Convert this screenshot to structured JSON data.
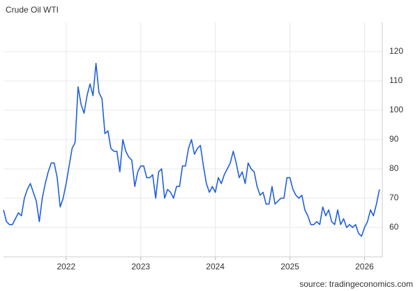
{
  "chart_data": {
    "type": "line",
    "title": "Crude Oil WTI",
    "source": "source: tradingeconomics.com",
    "color": "#1f5fe0",
    "grid": true,
    "y_axis_side": "right",
    "xlim": [
      2021.16,
      2026.22
    ],
    "xticks": [
      2022,
      2023,
      2024,
      2025,
      2026
    ],
    "ylim": [
      50,
      130
    ],
    "yticks": [
      60,
      70,
      80,
      90,
      100,
      110,
      120
    ],
    "x": [
      2021.16,
      2021.2,
      2021.24,
      2021.28,
      2021.32,
      2021.36,
      2021.4,
      2021.44,
      2021.48,
      2021.52,
      2021.56,
      2021.6,
      2021.64,
      2021.68,
      2021.72,
      2021.76,
      2021.8,
      2021.84,
      2021.88,
      2021.92,
      2021.96,
      2022,
      2022.04,
      2022.08,
      2022.12,
      2022.16,
      2022.2,
      2022.24,
      2022.28,
      2022.32,
      2022.36,
      2022.4,
      2022.44,
      2022.48,
      2022.52,
      2022.56,
      2022.6,
      2022.64,
      2022.68,
      2022.72,
      2022.76,
      2022.8,
      2022.84,
      2022.88,
      2022.92,
      2022.96,
      2023,
      2023.04,
      2023.08,
      2023.12,
      2023.16,
      2023.2,
      2023.24,
      2023.28,
      2023.32,
      2023.36,
      2023.4,
      2023.44,
      2023.48,
      2023.52,
      2023.56,
      2023.6,
      2023.64,
      2023.68,
      2023.72,
      2023.76,
      2023.8,
      2023.84,
      2023.88,
      2023.92,
      2023.96,
      2024,
      2024.04,
      2024.08,
      2024.12,
      2024.16,
      2024.2,
      2024.24,
      2024.28,
      2024.32,
      2024.36,
      2024.4,
      2024.44,
      2024.48,
      2024.52,
      2024.56,
      2024.6,
      2024.64,
      2024.68,
      2024.72,
      2024.76,
      2024.8,
      2024.84,
      2024.88,
      2024.92,
      2024.96,
      2025,
      2025.04,
      2025.08,
      2025.12,
      2025.16,
      2025.2,
      2025.24,
      2025.28,
      2025.32,
      2025.36,
      2025.4,
      2025.44,
      2025.48,
      2025.52,
      2025.56,
      2025.6,
      2025.64,
      2025.68,
      2025.72,
      2025.76,
      2025.8,
      2025.84,
      2025.88,
      2025.92,
      2025.96,
      2026,
      2026.04,
      2026.08,
      2026.12,
      2026.16,
      2026.2
    ],
    "values": [
      66,
      62,
      61,
      61,
      63,
      65,
      64,
      70,
      73,
      75,
      72,
      69,
      62,
      70,
      75,
      79,
      82,
      82,
      77,
      67,
      70,
      75,
      81,
      87,
      89,
      108,
      102,
      99,
      105,
      109,
      105,
      116,
      106,
      104,
      92,
      93,
      87,
      86,
      86,
      79,
      90,
      86,
      84,
      83,
      74,
      79,
      81,
      81,
      77,
      77,
      78,
      70,
      79,
      80,
      70,
      73,
      72,
      70,
      74,
      74,
      81,
      81,
      87,
      90,
      85,
      87,
      88,
      81,
      75,
      72,
      74,
      72,
      77,
      75,
      78,
      80,
      82,
      86,
      82,
      77,
      79,
      75,
      82,
      80,
      79,
      74,
      71,
      72,
      68,
      68,
      74,
      68,
      69,
      70,
      70,
      77,
      77,
      73,
      71,
      70,
      71,
      66,
      64,
      61,
      61,
      62,
      61,
      67,
      64,
      66,
      62,
      61,
      66,
      61,
      63,
      60,
      61,
      60,
      61,
      58,
      57,
      60,
      62,
      66,
      64,
      68,
      73
    ]
  }
}
